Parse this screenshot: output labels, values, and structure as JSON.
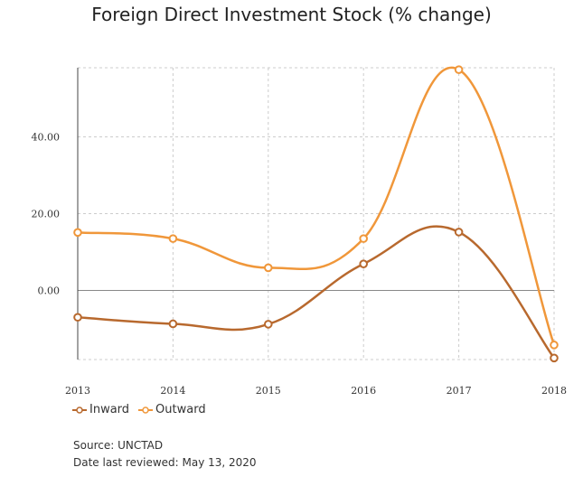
{
  "title": "Foreign Direct Investment Stock (% change)",
  "chart_data": {
    "type": "line",
    "title": "Foreign Direct Investment Stock (% change)",
    "x": [
      "2013",
      "2014",
      "2015",
      "2016",
      "2017",
      "2018"
    ],
    "y_ticks": [
      "0.00",
      "20.00",
      "40.00"
    ],
    "ylim": [
      -18,
      58
    ],
    "grid": true,
    "legend_position": "bottom-left",
    "series": [
      {
        "name": "Inward",
        "color": "#b8692e",
        "values": [
          -7.0,
          -8.7,
          -8.8,
          6.9,
          15.2,
          -17.6
        ]
      },
      {
        "name": "Outward",
        "color": "#f0973a",
        "values": [
          15.1,
          13.5,
          5.9,
          13.5,
          57.5,
          -14.2
        ]
      }
    ]
  },
  "legend": {
    "inward": "Inward",
    "outward": "Outward"
  },
  "source": "Source: UNCTAD",
  "reviewed": "Date last reviewed: May 13, 2020"
}
